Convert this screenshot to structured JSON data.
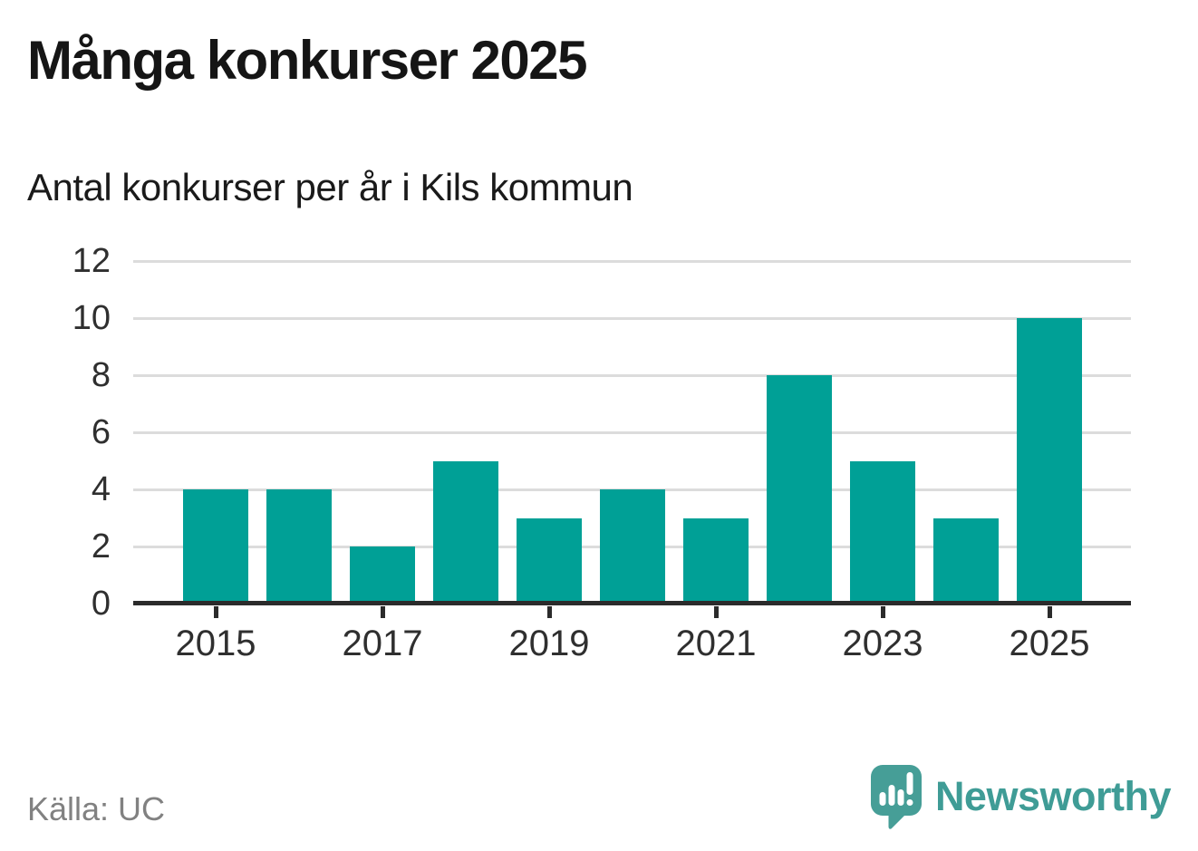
{
  "header": {
    "title": "Många konkurser 2025",
    "subtitle": "Antal konkurser per år i Kils kommun"
  },
  "chart_data": {
    "type": "bar",
    "title": "Många konkurser 2025",
    "subtitle": "Antal konkurser per år i Kils kommun",
    "categories": [
      "2015",
      "2016",
      "2017",
      "2018",
      "2019",
      "2020",
      "2021",
      "2022",
      "2023",
      "2024",
      "2025"
    ],
    "values": [
      4,
      4,
      2,
      5,
      3,
      4,
      3,
      8,
      5,
      3,
      10
    ],
    "xlabel": "",
    "ylabel": "",
    "ylim": [
      0,
      12
    ],
    "y_ticks": [
      0,
      2,
      4,
      6,
      8,
      10,
      12
    ],
    "x_tick_labels": [
      "2015",
      "2017",
      "2019",
      "2021",
      "2023",
      "2025"
    ],
    "grid": "horizontal",
    "legend": "none",
    "bar_color": "#00a096"
  },
  "footer": {
    "source": "Källa: UC",
    "brand": "Newsworthy"
  },
  "colors": {
    "bar": "#00a096",
    "brand_teal": "#3f9c96",
    "logo_bubble": "#469e97",
    "axis": "#2b2b2b",
    "grid": "#dcdcdc",
    "title_text": "#151515",
    "tick_text": "#2f2f2f",
    "muted_text": "#818181"
  }
}
